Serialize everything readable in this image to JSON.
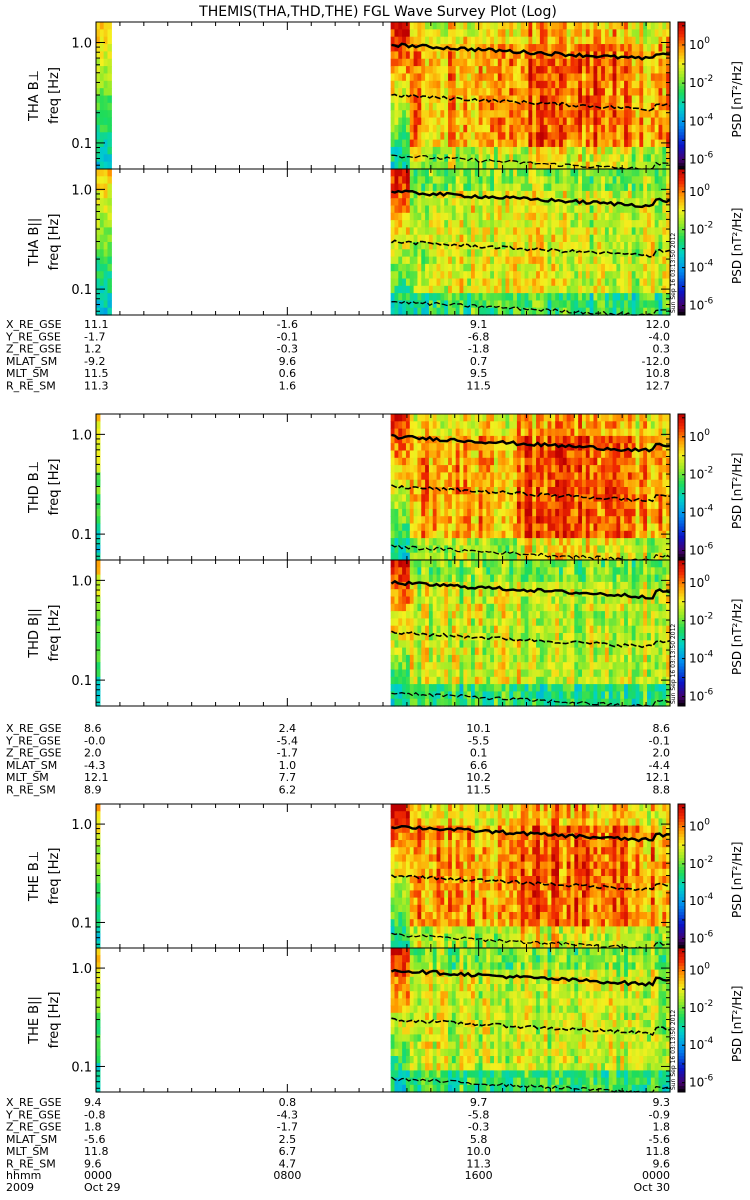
{
  "title": "THEMIS(THA,THD,THE) FGL Wave Survey Plot (Log)",
  "stamp": "Sun Sep 16 03:13:50 2012",
  "colors": {
    "background": "#ffffff",
    "axes": "#000000"
  },
  "chart_data": {
    "type": "heatmap",
    "grid": false,
    "colorbar": {
      "label": "PSD",
      "units": "[nT²/Hz]",
      "scale": "log",
      "ticks": [
        {
          "exp": 0,
          "label": "10",
          "sup": "0"
        },
        {
          "exp": -2,
          "label": "10",
          "sup": "-2"
        },
        {
          "exp": -4,
          "label": "10",
          "sup": "-4"
        },
        {
          "exp": -6,
          "label": "10",
          "sup": "-6"
        }
      ],
      "range": [
        -6.5,
        1.2
      ]
    },
    "freq_axis": {
      "label": "freq [Hz]",
      "scale": "log",
      "range": [
        0.055,
        1.6
      ],
      "ticks": [
        {
          "value": 1.0,
          "label": "1.0"
        },
        {
          "value": 0.1,
          "label": "0.1"
        }
      ]
    },
    "time_axis": {
      "range_hours": [
        0,
        24
      ],
      "ticks": [
        {
          "hour": 0,
          "hhmm": "0000",
          "date": "Oct 29"
        },
        {
          "hour": 8,
          "hhmm": "0800",
          "date": ""
        },
        {
          "hour": 16,
          "hhmm": "1600",
          "date": ""
        },
        {
          "hour": 24,
          "hhmm": "0000",
          "date": "Oct 30"
        }
      ],
      "row_label": "hhmm",
      "year": "2009"
    },
    "probes": [
      {
        "name": "THA",
        "panels": [
          {
            "label": "THA B⊥"
          },
          {
            "label": "THA B||"
          }
        ],
        "data_coverage_hours": [
          [
            0.0,
            0.7
          ],
          [
            12.3,
            24.0
          ]
        ],
        "ephemeris": [
          {
            "label": "X_RE_GSE",
            "values": [
              "11.1",
              "-1.6",
              "9.1",
              "12.0"
            ]
          },
          {
            "label": "Y_RE_GSE",
            "values": [
              "-1.7",
              "-0.1",
              "-6.8",
              "-4.0"
            ]
          },
          {
            "label": "Z_RE_GSE",
            "values": [
              "1.2",
              "-0.3",
              "-1.8",
              "0.3"
            ]
          },
          {
            "label": "MLAT_SM",
            "values": [
              "-9.2",
              "9.6",
              "0.7",
              "-12.0"
            ]
          },
          {
            "label": "MLT_SM",
            "values": [
              "11.5",
              "0.6",
              "9.5",
              "10.8"
            ]
          },
          {
            "label": "R_RE_SM",
            "values": [
              "11.3",
              "1.6",
              "11.5",
              "12.7"
            ]
          }
        ]
      },
      {
        "name": "THD",
        "panels": [
          {
            "label": "THD B⊥"
          },
          {
            "label": "THD B||"
          }
        ],
        "data_coverage_hours": [
          [
            0.0,
            0.15
          ],
          [
            12.3,
            24.0
          ]
        ],
        "ephemeris": [
          {
            "label": "X_RE_GSE",
            "values": [
              "8.6",
              "2.4",
              "10.1",
              "8.6"
            ]
          },
          {
            "label": "Y_RE_GSE",
            "values": [
              "-0.0",
              "-5.4",
              "-5.5",
              "-0.1"
            ]
          },
          {
            "label": "Z_RE_GSE",
            "values": [
              "2.0",
              "-1.7",
              "0.1",
              "2.0"
            ]
          },
          {
            "label": "MLAT_SM",
            "values": [
              "-4.3",
              "1.0",
              "6.6",
              "-4.4"
            ]
          },
          {
            "label": "MLT_SM",
            "values": [
              "12.1",
              "7.7",
              "10.2",
              "12.1"
            ]
          },
          {
            "label": "R_RE_SM",
            "values": [
              "8.9",
              "6.2",
              "11.5",
              "8.8"
            ]
          }
        ]
      },
      {
        "name": "THE",
        "panels": [
          {
            "label": "THE B⊥"
          },
          {
            "label": "THE B||"
          }
        ],
        "data_coverage_hours": [
          [
            0.0,
            0.15
          ],
          [
            12.3,
            24.0
          ]
        ],
        "ephemeris": [
          {
            "label": "X_RE_GSE",
            "values": [
              "9.4",
              "0.8",
              "9.7",
              "9.3"
            ]
          },
          {
            "label": "Y_RE_GSE",
            "values": [
              "-0.8",
              "-4.3",
              "-5.8",
              "-0.9"
            ]
          },
          {
            "label": "Z_RE_GSE",
            "values": [
              "1.8",
              "-1.7",
              "-0.3",
              "1.8"
            ]
          },
          {
            "label": "MLAT_SM",
            "values": [
              "-5.6",
              "2.5",
              "5.8",
              "-5.6"
            ]
          },
          {
            "label": "MLT_SM",
            "values": [
              "11.8",
              "6.7",
              "10.0",
              "11.8"
            ]
          },
          {
            "label": "R_RE_SM",
            "values": [
              "9.6",
              "4.7",
              "11.3",
              "9.6"
            ]
          }
        ]
      }
    ]
  }
}
